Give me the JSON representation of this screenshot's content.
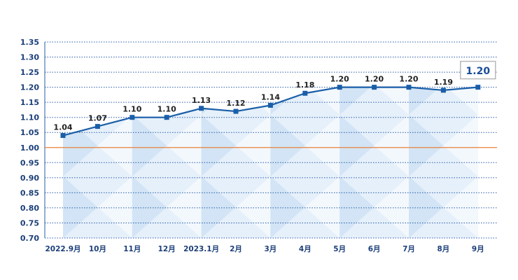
{
  "chart_data": {
    "type": "line",
    "categories": [
      "2022.9月",
      "10月",
      "11月",
      "12月",
      "2023.1月",
      "2月",
      "3月",
      "4月",
      "5月",
      "6月",
      "7月",
      "8月",
      "9月"
    ],
    "values": [
      1.04,
      1.07,
      1.1,
      1.1,
      1.13,
      1.12,
      1.14,
      1.18,
      1.2,
      1.2,
      1.2,
      1.19,
      1.2
    ],
    "data_labels": [
      "1.04",
      "1.07",
      "1.10",
      "1.10",
      "1.13",
      "1.12",
      "1.14",
      "1.18",
      "1.20",
      "1.20",
      "1.20",
      "1.19",
      "1.20"
    ],
    "y_ticks": [
      "0.70",
      "0.75",
      "0.80",
      "0.85",
      "0.90",
      "0.95",
      "1.00",
      "1.05",
      "1.10",
      "1.15",
      "1.20",
      "1.25",
      "1.30",
      "1.35"
    ],
    "ylim": [
      0.7,
      1.35
    ],
    "reference_line": 1.0,
    "highlight_index": 12,
    "grid": true,
    "title": "",
    "xlabel": "",
    "ylabel": "",
    "colors": {
      "line": "#1a5ea8",
      "marker": "#1a5ea8",
      "reference": "#e8823a",
      "grid": "#2a5da8",
      "axis_text": "#1c3f7a",
      "fill_light": "#e6f0fa",
      "fill_mid": "#cfe2f5",
      "highlight_border": "#b8b8b8",
      "highlight_text": "#1a4d9a"
    }
  }
}
